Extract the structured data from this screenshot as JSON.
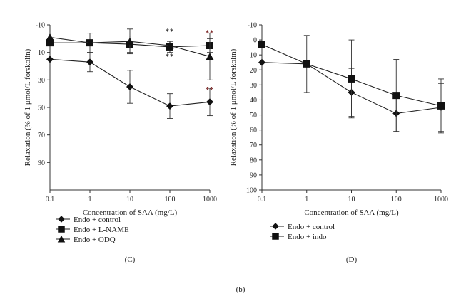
{
  "figure_label": "(b)",
  "chart_data": [
    {
      "type": "line",
      "panel_label": "(C)",
      "xlabel": "Concentration of SAA (mg/L)",
      "ylabel": "Relaxation (% of 1 μmol/L forskolin)",
      "x_scale": "log",
      "x": [
        0.1,
        1,
        10,
        100,
        1000
      ],
      "x_tick_labels": [
        "0.1",
        "1",
        "10",
        "100",
        "1000"
      ],
      "y_ticks": [
        -10,
        10,
        30,
        50,
        70,
        90
      ],
      "y_tick_labels": [
        "-10",
        "10",
        "30",
        "50",
        "70",
        "90"
      ],
      "ylim": [
        -10,
        110
      ],
      "y_inverted": true,
      "grid": false,
      "legend_position": "below",
      "series": [
        {
          "name": "Endo + control",
          "marker": "diamond",
          "values": [
            15,
            17,
            35,
            49,
            46
          ],
          "errors": [
            0,
            7,
            12,
            9,
            10
          ]
        },
        {
          "name": "Endo + L-NAME",
          "marker": "square",
          "values": [
            3,
            3,
            4,
            6,
            5
          ],
          "errors": [
            0,
            7,
            6,
            4,
            5
          ]
        },
        {
          "name": "Endo + ODQ",
          "marker": "triangle",
          "values": [
            -1,
            3,
            2,
            5,
            13
          ],
          "errors": [
            0,
            0,
            9,
            0,
            17
          ]
        }
      ],
      "annotations": [
        {
          "x": 100,
          "y": -5,
          "text": "**",
          "color": "#333333"
        },
        {
          "x": 100,
          "y": 13,
          "text": "**",
          "color": "#333333"
        },
        {
          "x": 1000,
          "y": -4,
          "text": "**",
          "color": "#7a2323"
        },
        {
          "x": 1000,
          "y": 37,
          "text": "**",
          "color": "#7a2323"
        }
      ]
    },
    {
      "type": "line",
      "panel_label": "(D)",
      "xlabel": "Concentration of SAA (mg/L)",
      "ylabel": "Relaxation (% of 1 μmol/L forskolin)",
      "x_scale": "log",
      "x": [
        0.1,
        1,
        10,
        100,
        1000
      ],
      "x_tick_labels": [
        "0.1",
        "1",
        "10",
        "100",
        "1000"
      ],
      "y_ticks": [
        -10,
        0,
        10,
        20,
        30,
        40,
        50,
        60,
        70,
        80,
        90,
        100
      ],
      "y_tick_labels": [
        "-10",
        "0",
        "10",
        "20",
        "30",
        "40",
        "50",
        "60",
        "70",
        "80",
        "90",
        "100"
      ],
      "ylim": [
        -10,
        100
      ],
      "y_inverted": true,
      "grid": false,
      "legend_position": "below",
      "series": [
        {
          "name": "Endo + control",
          "marker": "diamond",
          "values": [
            15,
            16,
            35,
            49,
            45
          ],
          "errors": [
            0,
            0,
            16,
            12,
            16
          ]
        },
        {
          "name": "Endo + indo",
          "marker": "square",
          "values": [
            3,
            16,
            26,
            37,
            44
          ],
          "errors": [
            0,
            19,
            26,
            24,
            18
          ]
        }
      ],
      "annotations": []
    }
  ]
}
